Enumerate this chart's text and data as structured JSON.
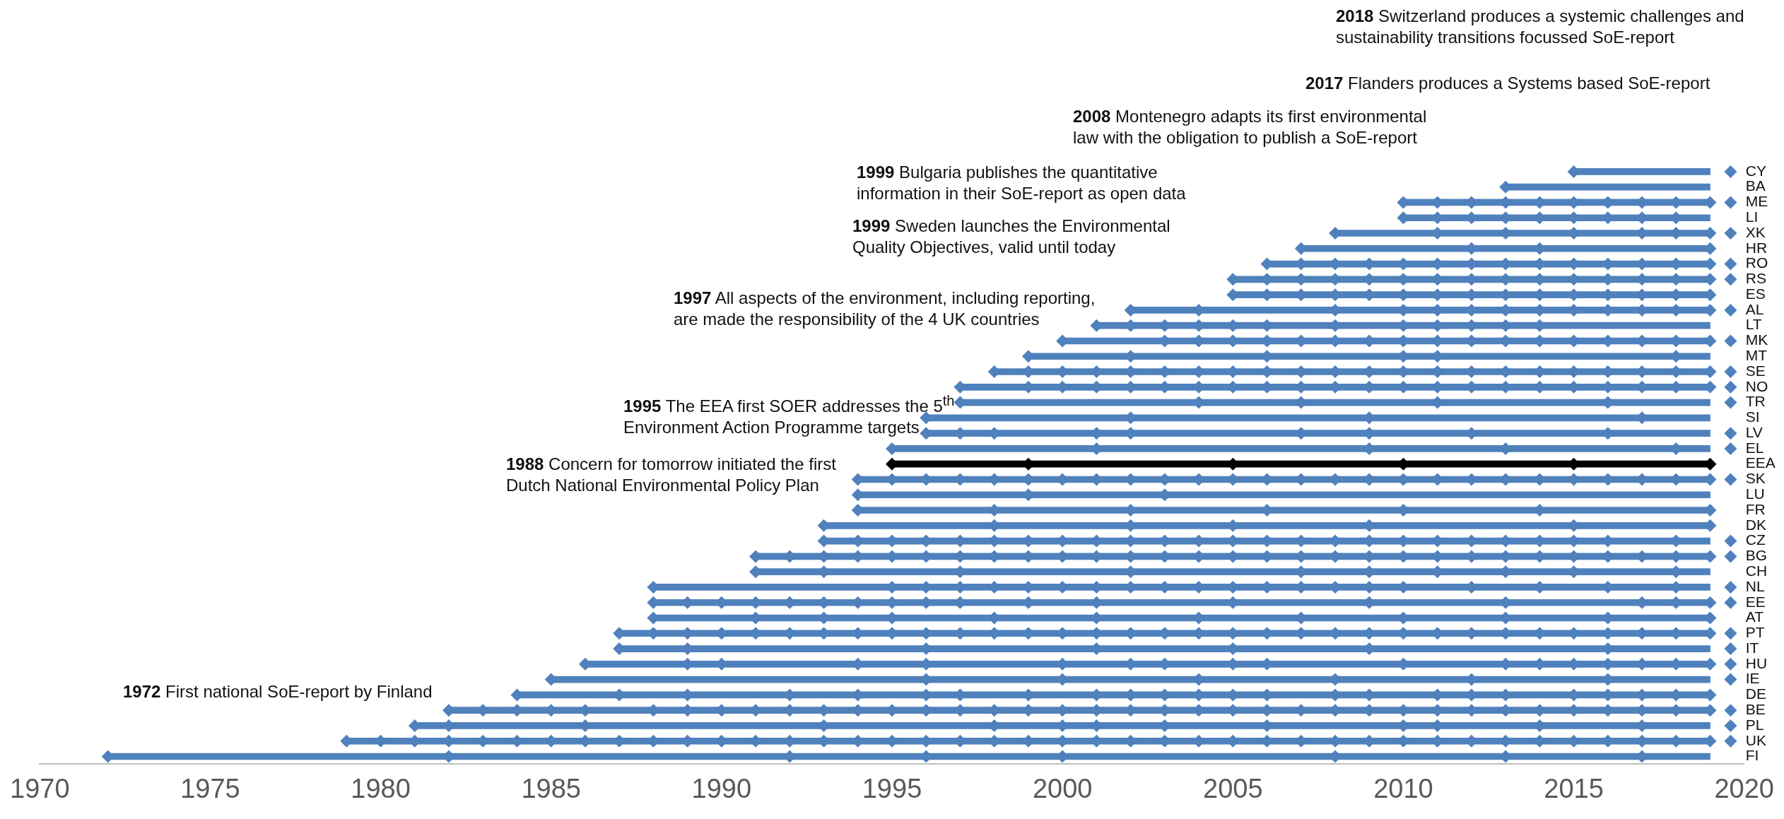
{
  "chart_data": {
    "type": "bar",
    "orientation": "horizontal",
    "marker": "diamond",
    "grid": false,
    "legend": false,
    "categories": [
      "CY",
      "BA",
      "ME",
      "LI",
      "XK",
      "HR",
      "RO",
      "RS",
      "ES",
      "AL",
      "LT",
      "MK",
      "MT",
      "SE",
      "NO",
      "TR",
      "SI",
      "LV",
      "EL",
      "EEA",
      "SK",
      "LU",
      "FR",
      "DK",
      "CZ",
      "BG",
      "CH",
      "NL",
      "EE",
      "AT",
      "PT",
      "IT",
      "HU",
      "IE",
      "DE",
      "BE",
      "PL",
      "UK",
      "FI"
    ],
    "base": [
      2015,
      2013,
      2010,
      2010,
      2008,
      2007,
      2006,
      2005,
      2005,
      2002,
      2001,
      2000,
      1999,
      1998,
      1997,
      1997,
      1996,
      1996,
      1995,
      1995,
      1994,
      1994,
      1994,
      1993,
      1993,
      1991,
      1991,
      1988,
      1988,
      1988,
      1987,
      1987,
      1986,
      1985,
      1984,
      1982,
      1981,
      1979,
      1972
    ],
    "values": [
      4,
      6,
      9,
      9,
      11,
      12,
      13,
      14,
      14,
      17,
      18,
      19,
      20,
      21,
      22,
      22,
      23,
      23,
      24,
      24,
      25,
      25,
      25,
      26,
      26,
      28,
      28,
      31,
      31,
      31,
      32,
      32,
      33,
      34,
      35,
      37,
      38,
      40,
      47
    ],
    "colors": [
      "#4f81bd",
      "#4f81bd",
      "#4f81bd",
      "#4f81bd",
      "#4f81bd",
      "#4f81bd",
      "#4f81bd",
      "#4f81bd",
      "#4f81bd",
      "#4f81bd",
      "#4f81bd",
      "#4f81bd",
      "#4f81bd",
      "#4f81bd",
      "#4f81bd",
      "#4f81bd",
      "#4f81bd",
      "#4f81bd",
      "#4f81bd",
      "#000000",
      "#4f81bd",
      "#4f81bd",
      "#4f81bd",
      "#4f81bd",
      "#4f81bd",
      "#4f81bd",
      "#4f81bd",
      "#4f81bd",
      "#4f81bd",
      "#4f81bd",
      "#4f81bd",
      "#4f81bd",
      "#4f81bd",
      "#4f81bd",
      "#4f81bd",
      "#4f81bd",
      "#4f81bd",
      "#4f81bd",
      "#4f81bd"
    ],
    "xlim": [
      1970,
      2020
    ],
    "xticks": [
      1970,
      1975,
      1980,
      1985,
      1990,
      1995,
      2000,
      2005,
      2010,
      2015,
      2020
    ],
    "annotations": [
      "2018 Switzerland produces a systemic challenges and sustainability transitions focussed SoE-report",
      "2017 Flanders produces a Systems based SoE-report",
      "2008 Montenegro adapts its first environmental law with the obligation to publish a SoE-report",
      "1999 Bulgaria publishes the quantitative information in their SoE-report as open data",
      "1999 Sweden launches the Environmental Quality Objectives, valid until today",
      "1997 All aspects of the environment, including reporting, are made the responsibility of the 4 UK countries",
      "1995 The EEA first SOER addresses the 5$^{th}$ Environment Action Programme targets",
      "1988 Concern for tomorrow initiated the first Dutch National Environmental Policy Plan",
      "1972 First national SoE-report by Finland"
    ],
    "series": [
      {
        "type": "scatter",
        "color": "#4f81bd",
        "x": [
          "CY"
        ],
        "values": [
          2015
        ]
      },
      {
        "type": "scatter",
        "color": "#4f81bd",
        "x": [
          "BA"
        ],
        "values": [
          2013
        ]
      },
      {
        "type": "scatter",
        "color": "#4f81bd",
        "x": [
          "ME",
          "ME",
          "ME",
          "ME",
          "ME",
          "ME",
          "ME",
          "ME",
          "ME",
          "ME"
        ],
        "values": [
          2010,
          2011,
          2012,
          2013,
          2014,
          2015,
          2016,
          2017,
          2018,
          2019
        ]
      },
      {
        "type": "scatter",
        "color": "#4f81bd",
        "x": [
          "LI",
          "LI",
          "LI",
          "LI",
          "LI",
          "LI",
          "LI",
          "LI",
          "LI"
        ],
        "values": [
          2010,
          2011,
          2012,
          2013,
          2014,
          2015,
          2016,
          2017,
          2018
        ]
      },
      {
        "type": "scatter",
        "color": "#4f81bd",
        "x": [
          "XK",
          "XK",
          "XK",
          "XK",
          "XK",
          "XK",
          "XK"
        ],
        "values": [
          2008,
          2011,
          2013,
          2015,
          2017,
          2018,
          2019
        ]
      },
      {
        "type": "scatter",
        "color": "#4f81bd",
        "x": [
          "HR",
          "HR",
          "HR",
          "HR"
        ],
        "values": [
          2007,
          2012,
          2014,
          2019
        ]
      },
      {
        "type": "scatter",
        "color": "#4f81bd",
        "x": [
          "RO",
          "RO",
          "RO",
          "RO",
          "RO",
          "RO",
          "RO",
          "RO",
          "RO",
          "RO",
          "RO",
          "RO",
          "RO",
          "RO"
        ],
        "values": [
          2006,
          2007,
          2008,
          2009,
          2010,
          2011,
          2012,
          2013,
          2014,
          2015,
          2016,
          2017,
          2018,
          2019
        ]
      },
      {
        "type": "scatter",
        "color": "#4f81bd",
        "x": [
          "RS",
          "RS",
          "RS",
          "RS",
          "RS",
          "RS",
          "RS",
          "RS",
          "RS",
          "RS",
          "RS",
          "RS",
          "RS",
          "RS",
          "RS"
        ],
        "values": [
          2005,
          2006,
          2007,
          2008,
          2009,
          2010,
          2011,
          2012,
          2013,
          2014,
          2015,
          2016,
          2017,
          2018,
          2019
        ]
      },
      {
        "type": "scatter",
        "color": "#4f81bd",
        "x": [
          "ES",
          "ES",
          "ES",
          "ES",
          "ES",
          "ES",
          "ES",
          "ES",
          "ES",
          "ES",
          "ES",
          "ES",
          "ES",
          "ES",
          "ES"
        ],
        "values": [
          2005,
          2006,
          2007,
          2008,
          2009,
          2010,
          2011,
          2012,
          2013,
          2014,
          2015,
          2016,
          2017,
          2018,
          2019
        ]
      },
      {
        "type": "scatter",
        "color": "#4f81bd",
        "x": [
          "AL",
          "AL",
          "AL",
          "AL",
          "AL",
          "AL",
          "AL",
          "AL",
          "AL",
          "AL",
          "AL",
          "AL",
          "AL"
        ],
        "values": [
          2002,
          2004,
          2008,
          2010,
          2011,
          2012,
          2013,
          2014,
          2015,
          2016,
          2017,
          2018,
          2019
        ]
      },
      {
        "type": "scatter",
        "color": "#4f81bd",
        "x": [
          "LT",
          "LT",
          "LT",
          "LT",
          "LT",
          "LT",
          "LT",
          "LT",
          "LT",
          "LT",
          "LT",
          "LT"
        ],
        "values": [
          2001,
          2002,
          2003,
          2004,
          2005,
          2006,
          2008,
          2010,
          2011,
          2012,
          2013,
          2014
        ]
      },
      {
        "type": "scatter",
        "color": "#4f81bd",
        "x": [
          "MK",
          "MK",
          "MK",
          "MK",
          "MK",
          "MK",
          "MK",
          "MK",
          "MK",
          "MK",
          "MK",
          "MK",
          "MK",
          "MK",
          "MK",
          "MK",
          "MK",
          "MK"
        ],
        "values": [
          2000,
          2003,
          2004,
          2005,
          2006,
          2007,
          2008,
          2009,
          2010,
          2011,
          2012,
          2013,
          2014,
          2015,
          2016,
          2017,
          2018,
          2019
        ]
      },
      {
        "type": "scatter",
        "color": "#4f81bd",
        "x": [
          "MT",
          "MT",
          "MT",
          "MT",
          "MT",
          "MT"
        ],
        "values": [
          1999,
          2002,
          2006,
          2010,
          2011,
          2018
        ]
      },
      {
        "type": "scatter",
        "color": "#4f81bd",
        "x": [
          "SE",
          "SE",
          "SE",
          "SE",
          "SE",
          "SE",
          "SE",
          "SE",
          "SE",
          "SE",
          "SE",
          "SE",
          "SE",
          "SE",
          "SE",
          "SE",
          "SE",
          "SE",
          "SE",
          "SE",
          "SE",
          "SE"
        ],
        "values": [
          1998,
          1999,
          2000,
          2001,
          2002,
          2003,
          2004,
          2005,
          2006,
          2007,
          2008,
          2009,
          2010,
          2011,
          2012,
          2013,
          2014,
          2015,
          2016,
          2017,
          2018,
          2019
        ]
      },
      {
        "type": "scatter",
        "color": "#4f81bd",
        "x": [
          "NO",
          "NO",
          "NO",
          "NO",
          "NO",
          "NO",
          "NO",
          "NO",
          "NO",
          "NO",
          "NO",
          "NO",
          "NO",
          "NO",
          "NO",
          "NO",
          "NO",
          "NO",
          "NO",
          "NO",
          "NO",
          "NO"
        ],
        "values": [
          1997,
          1999,
          2000,
          2001,
          2002,
          2003,
          2004,
          2005,
          2006,
          2007,
          2008,
          2009,
          2010,
          2011,
          2012,
          2013,
          2014,
          2015,
          2016,
          2017,
          2018,
          2019
        ]
      },
      {
        "type": "scatter",
        "color": "#4f81bd",
        "x": [
          "TR",
          "TR",
          "TR",
          "TR",
          "TR"
        ],
        "values": [
          1997,
          2004,
          2007,
          2011,
          2016
        ]
      },
      {
        "type": "scatter",
        "color": "#4f81bd",
        "x": [
          "SI",
          "SI",
          "SI",
          "SI"
        ],
        "values": [
          1996,
          2002,
          2009,
          2017
        ]
      },
      {
        "type": "scatter",
        "color": "#4f81bd",
        "x": [
          "LV",
          "LV",
          "LV",
          "LV",
          "LV",
          "LV",
          "LV",
          "LV",
          "LV"
        ],
        "values": [
          1996,
          1997,
          1998,
          2001,
          2002,
          2007,
          2009,
          2012,
          2016
        ]
      },
      {
        "type": "scatter",
        "color": "#4f81bd",
        "x": [
          "EL",
          "EL",
          "EL",
          "EL",
          "EL"
        ],
        "values": [
          1995,
          2001,
          2009,
          2013,
          2018
        ]
      },
      {
        "type": "scatter",
        "color": "#000000",
        "x": [
          "EEA",
          "EEA",
          "EEA",
          "EEA",
          "EEA",
          "EEA"
        ],
        "values": [
          1995,
          1999,
          2005,
          2010,
          2015,
          2019
        ]
      },
      {
        "type": "scatter",
        "color": "#4f81bd",
        "x": [
          "SK",
          "SK",
          "SK",
          "SK",
          "SK",
          "SK",
          "SK",
          "SK",
          "SK",
          "SK",
          "SK",
          "SK",
          "SK",
          "SK",
          "SK",
          "SK",
          "SK",
          "SK",
          "SK",
          "SK",
          "SK",
          "SK",
          "SK",
          "SK",
          "SK",
          "SK"
        ],
        "values": [
          1994,
          1995,
          1996,
          1997,
          1998,
          1999,
          2000,
          2001,
          2002,
          2003,
          2004,
          2005,
          2006,
          2007,
          2008,
          2009,
          2010,
          2011,
          2012,
          2013,
          2014,
          2015,
          2016,
          2017,
          2018,
          2019
        ]
      },
      {
        "type": "scatter",
        "color": "#4f81bd",
        "x": [
          "LU",
          "LU",
          "LU"
        ],
        "values": [
          1994,
          1999,
          2003
        ]
      },
      {
        "type": "scatter",
        "color": "#4f81bd",
        "x": [
          "FR",
          "FR",
          "FR",
          "FR",
          "FR",
          "FR",
          "FR"
        ],
        "values": [
          1994,
          1998,
          2002,
          2006,
          2010,
          2014,
          2019
        ]
      },
      {
        "type": "scatter",
        "color": "#4f81bd",
        "x": [
          "DK",
          "DK",
          "DK",
          "DK",
          "DK",
          "DK",
          "DK"
        ],
        "values": [
          1993,
          1998,
          2002,
          2005,
          2009,
          2015,
          2019
        ]
      },
      {
        "type": "scatter",
        "color": "#4f81bd",
        "x": [
          "CZ",
          "CZ",
          "CZ",
          "CZ",
          "CZ",
          "CZ",
          "CZ",
          "CZ",
          "CZ",
          "CZ",
          "CZ",
          "CZ",
          "CZ",
          "CZ",
          "CZ",
          "CZ",
          "CZ",
          "CZ",
          "CZ",
          "CZ",
          "CZ",
          "CZ",
          "CZ",
          "CZ",
          "CZ"
        ],
        "values": [
          1993,
          1994,
          1995,
          1996,
          1997,
          1998,
          1999,
          2000,
          2001,
          2002,
          2003,
          2004,
          2005,
          2006,
          2007,
          2008,
          2009,
          2010,
          2011,
          2012,
          2013,
          2014,
          2015,
          2016,
          2018
        ]
      },
      {
        "type": "scatter",
        "color": "#4f81bd",
        "x": [
          "BG",
          "BG",
          "BG",
          "BG",
          "BG",
          "BG",
          "BG",
          "BG",
          "BG",
          "BG",
          "BG",
          "BG",
          "BG",
          "BG",
          "BG",
          "BG",
          "BG",
          "BG",
          "BG",
          "BG",
          "BG",
          "BG",
          "BG",
          "BG",
          "BG",
          "BG",
          "BG",
          "BG",
          "BG"
        ],
        "values": [
          1991,
          1992,
          1993,
          1994,
          1995,
          1996,
          1997,
          1998,
          1999,
          2000,
          2001,
          2002,
          2003,
          2004,
          2005,
          2006,
          2007,
          2008,
          2009,
          2010,
          2011,
          2012,
          2013,
          2014,
          2015,
          2016,
          2017,
          2018,
          2019
        ]
      },
      {
        "type": "scatter",
        "color": "#4f81bd",
        "x": [
          "CH",
          "CH",
          "CH",
          "CH",
          "CH",
          "CH",
          "CH",
          "CH",
          "CH",
          "CH"
        ],
        "values": [
          1991,
          1993,
          1997,
          2002,
          2007,
          2009,
          2011,
          2013,
          2015,
          2018
        ]
      },
      {
        "type": "scatter",
        "color": "#4f81bd",
        "x": [
          "NL",
          "NL",
          "NL",
          "NL",
          "NL",
          "NL",
          "NL",
          "NL",
          "NL",
          "NL",
          "NL",
          "NL",
          "NL",
          "NL",
          "NL",
          "NL",
          "NL",
          "NL",
          "NL",
          "NL",
          "NL"
        ],
        "values": [
          1988,
          1995,
          1996,
          1997,
          1998,
          1999,
          2000,
          2001,
          2002,
          2003,
          2004,
          2005,
          2006,
          2007,
          2008,
          2009,
          2010,
          2012,
          2014,
          2016,
          2018
        ]
      },
      {
        "type": "scatter",
        "color": "#4f81bd",
        "x": [
          "EE",
          "EE",
          "EE",
          "EE",
          "EE",
          "EE",
          "EE",
          "EE",
          "EE",
          "EE",
          "EE",
          "EE",
          "EE",
          "EE",
          "EE",
          "EE",
          "EE",
          "EE"
        ],
        "values": [
          1988,
          1989,
          1990,
          1991,
          1992,
          1993,
          1994,
          1995,
          1996,
          1997,
          1999,
          2001,
          2005,
          2009,
          2013,
          2017,
          2018,
          2019
        ]
      },
      {
        "type": "scatter",
        "color": "#4f81bd",
        "x": [
          "AT",
          "AT",
          "AT",
          "AT",
          "AT",
          "AT",
          "AT",
          "AT",
          "AT",
          "AT",
          "AT",
          "AT"
        ],
        "values": [
          1988,
          1991,
          1993,
          1995,
          1998,
          2001,
          2004,
          2007,
          2010,
          2013,
          2016,
          2019
        ]
      },
      {
        "type": "scatter",
        "color": "#4f81bd",
        "x": [
          "PT",
          "PT",
          "PT",
          "PT",
          "PT",
          "PT",
          "PT",
          "PT",
          "PT",
          "PT",
          "PT",
          "PT",
          "PT",
          "PT",
          "PT",
          "PT",
          "PT",
          "PT",
          "PT",
          "PT",
          "PT",
          "PT",
          "PT",
          "PT",
          "PT",
          "PT",
          "PT",
          "PT",
          "PT",
          "PT",
          "PT",
          "PT",
          "PT"
        ],
        "values": [
          1987,
          1988,
          1989,
          1990,
          1991,
          1992,
          1993,
          1994,
          1995,
          1996,
          1997,
          1998,
          1999,
          2000,
          2001,
          2002,
          2003,
          2004,
          2005,
          2006,
          2007,
          2008,
          2009,
          2010,
          2011,
          2012,
          2013,
          2014,
          2015,
          2016,
          2017,
          2018,
          2019
        ]
      },
      {
        "type": "scatter",
        "color": "#4f81bd",
        "x": [
          "IT",
          "IT",
          "IT",
          "IT",
          "IT",
          "IT",
          "IT"
        ],
        "values": [
          1987,
          1989,
          1996,
          2001,
          2005,
          2009,
          2016
        ]
      },
      {
        "type": "scatter",
        "color": "#4f81bd",
        "x": [
          "HU",
          "HU",
          "HU",
          "HU",
          "HU",
          "HU",
          "HU",
          "HU",
          "HU",
          "HU",
          "HU",
          "HU",
          "HU",
          "HU",
          "HU",
          "HU",
          "HU",
          "HU"
        ],
        "values": [
          1986,
          1989,
          1990,
          1994,
          1996,
          2000,
          2002,
          2003,
          2005,
          2006,
          2010,
          2013,
          2014,
          2015,
          2016,
          2017,
          2018,
          2019
        ]
      },
      {
        "type": "scatter",
        "color": "#4f81bd",
        "x": [
          "IE",
          "IE",
          "IE",
          "IE",
          "IE",
          "IE",
          "IE"
        ],
        "values": [
          1985,
          1996,
          2000,
          2004,
          2008,
          2012,
          2016
        ]
      },
      {
        "type": "scatter",
        "color": "#4f81bd",
        "x": [
          "DE",
          "DE",
          "DE",
          "DE",
          "DE",
          "DE",
          "DE",
          "DE",
          "DE",
          "DE",
          "DE",
          "DE",
          "DE",
          "DE",
          "DE",
          "DE",
          "DE",
          "DE",
          "DE",
          "DE",
          "DE",
          "DE",
          "DE",
          "DE"
        ],
        "values": [
          1984,
          1987,
          1989,
          1992,
          1994,
          1996,
          1997,
          1999,
          2001,
          2002,
          2003,
          2004,
          2005,
          2006,
          2008,
          2009,
          2011,
          2012,
          2013,
          2015,
          2016,
          2017,
          2018,
          2019
        ]
      },
      {
        "type": "scatter",
        "color": "#4f81bd",
        "x": [
          "BE",
          "BE",
          "BE",
          "BE",
          "BE",
          "BE",
          "BE",
          "BE",
          "BE",
          "BE",
          "BE",
          "BE",
          "BE",
          "BE",
          "BE",
          "BE",
          "BE",
          "BE",
          "BE",
          "BE",
          "BE",
          "BE",
          "BE",
          "BE",
          "BE",
          "BE",
          "BE",
          "BE",
          "BE",
          "BE",
          "BE",
          "BE",
          "BE",
          "BE",
          "BE",
          "BE",
          "BE"
        ],
        "values": [
          1982,
          1983,
          1984,
          1985,
          1986,
          1988,
          1989,
          1990,
          1991,
          1992,
          1993,
          1994,
          1995,
          1996,
          1997,
          1998,
          1999,
          2000,
          2001,
          2002,
          2003,
          2004,
          2005,
          2006,
          2007,
          2008,
          2009,
          2010,
          2011,
          2012,
          2013,
          2014,
          2015,
          2016,
          2017,
          2018,
          2019
        ]
      },
      {
        "type": "scatter",
        "color": "#4f81bd",
        "x": [
          "PL",
          "PL",
          "PL",
          "PL",
          "PL",
          "PL",
          "PL",
          "PL",
          "PL",
          "PL",
          "PL",
          "PL",
          "PL"
        ],
        "values": [
          1981,
          1982,
          1986,
          1993,
          1998,
          2000,
          2001,
          2003,
          2006,
          2010,
          2011,
          2014,
          2017
        ]
      },
      {
        "type": "scatter",
        "color": "#4f81bd",
        "x": [
          "UK",
          "UK",
          "UK",
          "UK",
          "UK",
          "UK",
          "UK",
          "UK",
          "UK",
          "UK",
          "UK",
          "UK",
          "UK",
          "UK",
          "UK",
          "UK",
          "UK",
          "UK",
          "UK",
          "UK",
          "UK",
          "UK",
          "UK",
          "UK",
          "UK",
          "UK",
          "UK",
          "UK",
          "UK",
          "UK",
          "UK",
          "UK",
          "UK",
          "UK",
          "UK",
          "UK",
          "UK",
          "UK",
          "UK",
          "UK",
          "UK"
        ],
        "values": [
          1979,
          1980,
          1981,
          1982,
          1983,
          1984,
          1985,
          1986,
          1987,
          1988,
          1989,
          1990,
          1991,
          1992,
          1993,
          1994,
          1995,
          1996,
          1997,
          1998,
          1999,
          2000,
          2001,
          2002,
          2003,
          2004,
          2005,
          2006,
          2007,
          2008,
          2009,
          2010,
          2011,
          2012,
          2013,
          2014,
          2015,
          2016,
          2017,
          2018,
          2019
        ]
      },
      {
        "type": "scatter",
        "color": "#4f81bd",
        "x": [
          "FI",
          "FI",
          "FI",
          "FI",
          "FI",
          "FI",
          "FI",
          "FI"
        ],
        "values": [
          1972,
          1982,
          1992,
          1996,
          2000,
          2008,
          2013,
          2017
        ]
      },
      {
        "type": "scatter",
        "color": "#4f81bd",
        "x": [
          "CY",
          "ME",
          "XK",
          "RO",
          "RS",
          "AL",
          "MK",
          "SE",
          "NO",
          "TR",
          "LV",
          "EL",
          "SK",
          "CZ",
          "BG",
          "NL",
          "EE",
          "PT",
          "IT",
          "HU",
          "IE",
          "BE",
          "PL",
          "UK"
        ],
        "values": [
          2019.6,
          2019.6,
          2019.6,
          2019.6,
          2019.6,
          2019.6,
          2019.6,
          2019.6,
          2019.6,
          2019.6,
          2019.6,
          2019.6,
          2019.6,
          2019.6,
          2019.6,
          2019.6,
          2019.6,
          2019.6,
          2019.6,
          2019.6,
          2019.6,
          2019.6,
          2019.6,
          2019.6
        ]
      }
    ]
  }
}
